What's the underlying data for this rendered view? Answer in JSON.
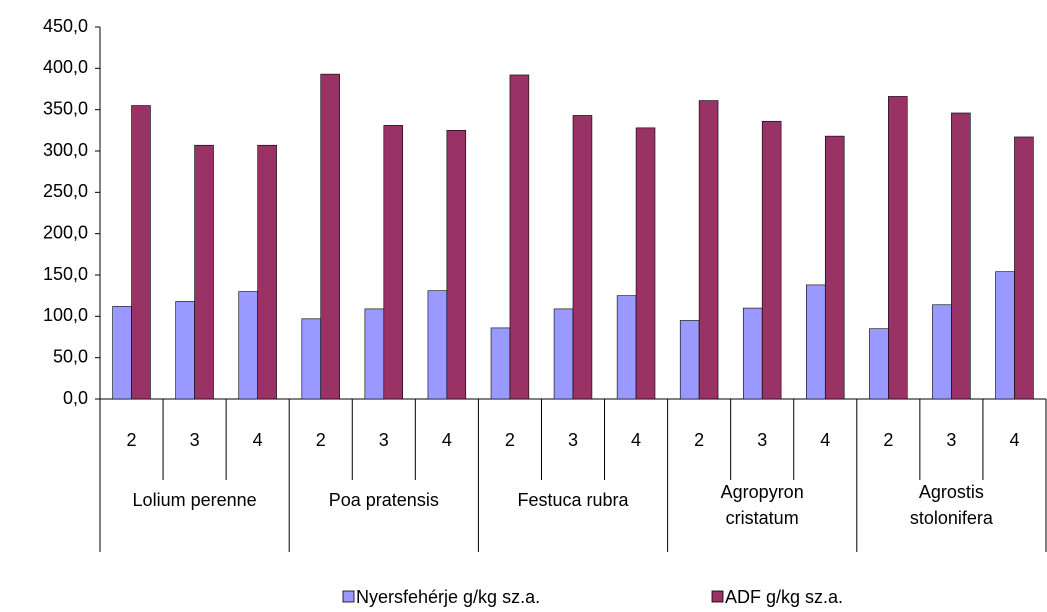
{
  "chart_data": {
    "type": "bar",
    "categories": [
      "2",
      "3",
      "4",
      "2",
      "3",
      "4",
      "2",
      "3",
      "4",
      "2",
      "3",
      "4",
      "2",
      "3",
      "4"
    ],
    "groups": [
      "Lolium perenne",
      "Poa pratensis",
      "Festuca rubra",
      "Agropyron cristatum",
      "Agrostis stolonifera"
    ],
    "series": [
      {
        "name": "Nyersfehérje g/kg sz.a.",
        "color": "#9999ff",
        "values": [
          112,
          118,
          130,
          97,
          109,
          131,
          86,
          109,
          125,
          95,
          110,
          138,
          85,
          114,
          154
        ]
      },
      {
        "name": "ADF g/kg sz.a.",
        "color": "#993366",
        "values": [
          355,
          307,
          307,
          393,
          331,
          325,
          392,
          343,
          328,
          361,
          336,
          318,
          366,
          346,
          317
        ]
      }
    ],
    "ylim": [
      0,
      450
    ],
    "yticks": [
      {
        "value": 0,
        "label": "0,0"
      },
      {
        "value": 50,
        "label": "50,0"
      },
      {
        "value": 100,
        "label": "100,0"
      },
      {
        "value": 150,
        "label": "150,0"
      },
      {
        "value": 200,
        "label": "200,0"
      },
      {
        "value": 250,
        "label": "250,0"
      },
      {
        "value": 300,
        "label": "300,0"
      },
      {
        "value": 350,
        "label": "350,0"
      },
      {
        "value": 400,
        "label": "400,0"
      },
      {
        "value": 450,
        "label": "450,0"
      }
    ],
    "legend": "bottom"
  }
}
